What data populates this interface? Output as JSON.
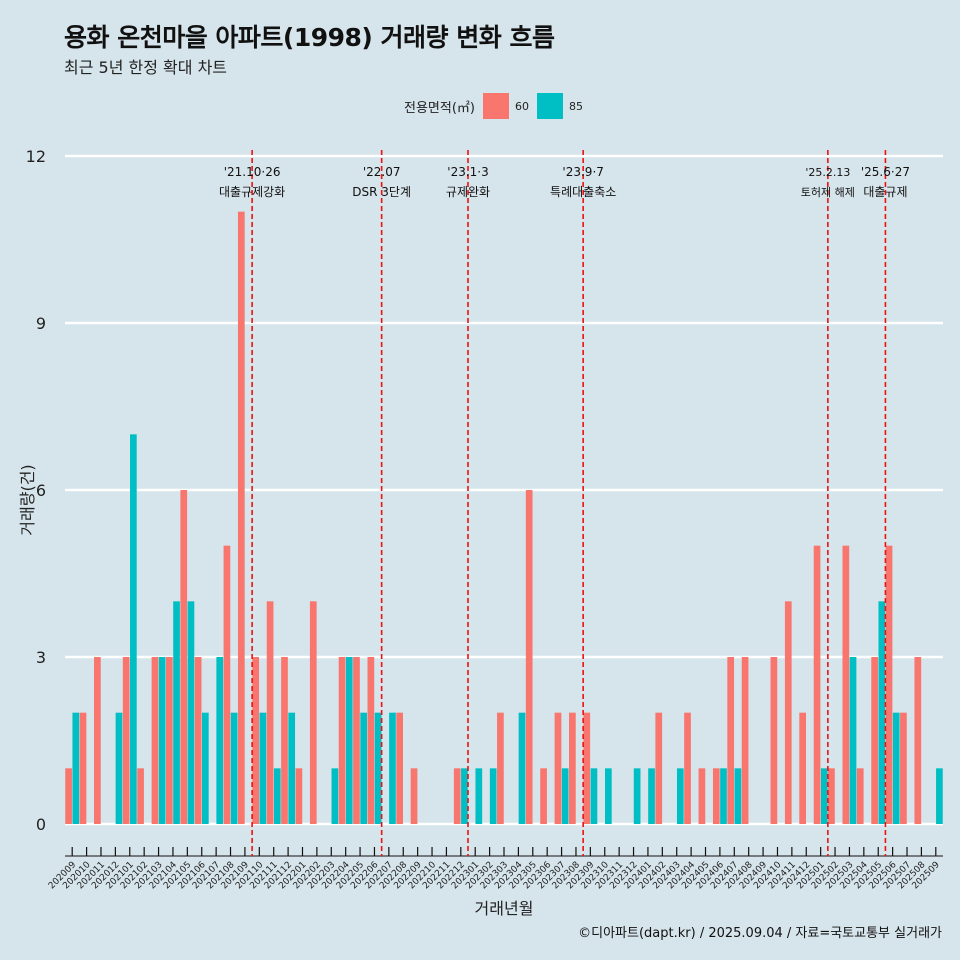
{
  "title": "용화 온천마을 아파트(1998) 거래량 변화 흐름",
  "subtitle": "최근 5년 한정 확대 차트",
  "legend": {
    "title": "전용면적(㎡)",
    "items": [
      {
        "label": "60",
        "color": "#F8766D"
      },
      {
        "label": "85",
        "color": "#00BFC4"
      }
    ]
  },
  "caption": "©디아파트(dapt.kr) / 2025.09.04 / 자료=국토교통부 실거래가",
  "chart_data": {
    "type": "bar",
    "xlabel": "거래년월",
    "ylabel": "거래량(건)",
    "ylim": [
      0,
      12
    ],
    "yticks": [
      0,
      3,
      6,
      9,
      12
    ],
    "categories": [
      "202009",
      "202010",
      "202011",
      "202012",
      "202101",
      "202102",
      "202103",
      "202104",
      "202105",
      "202106",
      "202107",
      "202108",
      "202109",
      "202110",
      "202111",
      "202112",
      "202201",
      "202202",
      "202203",
      "202204",
      "202205",
      "202206",
      "202207",
      "202208",
      "202209",
      "202210",
      "202211",
      "202212",
      "202301",
      "202302",
      "202303",
      "202304",
      "202305",
      "202306",
      "202307",
      "202308",
      "202309",
      "202310",
      "202311",
      "202312",
      "202401",
      "202402",
      "202403",
      "202404",
      "202405",
      "202406",
      "202407",
      "202408",
      "202409",
      "202410",
      "202411",
      "202412",
      "202501",
      "202502",
      "202503",
      "202504",
      "202505",
      "202506",
      "202507",
      "202508",
      "202509"
    ],
    "series": [
      {
        "name": "60",
        "color": "#F8766D",
        "values": [
          1,
          2,
          3,
          0,
          3,
          1,
          3,
          3,
          6,
          3,
          0,
          5,
          11,
          3,
          4,
          3,
          1,
          4,
          0,
          3,
          3,
          3,
          0,
          2,
          1,
          0,
          0,
          1,
          0,
          0,
          2,
          0,
          6,
          1,
          2,
          2,
          2,
          0,
          0,
          0,
          0,
          2,
          0,
          2,
          1,
          1,
          3,
          3,
          0,
          3,
          4,
          2,
          5,
          1,
          5,
          1,
          3,
          5,
          2,
          3,
          0
        ]
      },
      {
        "name": "85",
        "color": "#00BFC4",
        "values": [
          2,
          0,
          0,
          2,
          7,
          0,
          3,
          4,
          4,
          2,
          3,
          2,
          0,
          2,
          1,
          2,
          0,
          0,
          1,
          3,
          2,
          2,
          2,
          0,
          0,
          0,
          0,
          1,
          1,
          1,
          0,
          2,
          0,
          0,
          1,
          0,
          1,
          1,
          0,
          1,
          1,
          0,
          1,
          0,
          0,
          1,
          1,
          0,
          0,
          0,
          0,
          0,
          1,
          0,
          3,
          0,
          4,
          2,
          0,
          0,
          1
        ]
      }
    ],
    "annotations": [
      {
        "index": 13,
        "line1": "'21.10·26",
        "line2": "대출규제강화"
      },
      {
        "index": 22,
        "line1": "'22.07",
        "line2": "DSR 3단계"
      },
      {
        "index": 28,
        "line1": "'23.1·3",
        "line2": "규제완화"
      },
      {
        "index": 36,
        "line1": "'23.9·7",
        "line2": "특례대출축소"
      },
      {
        "index": 53,
        "line1": "'25.2.13",
        "line2": "토허제 해제"
      },
      {
        "index": 57,
        "line1": "'25.6·27",
        "line2": "대출규제"
      }
    ]
  }
}
